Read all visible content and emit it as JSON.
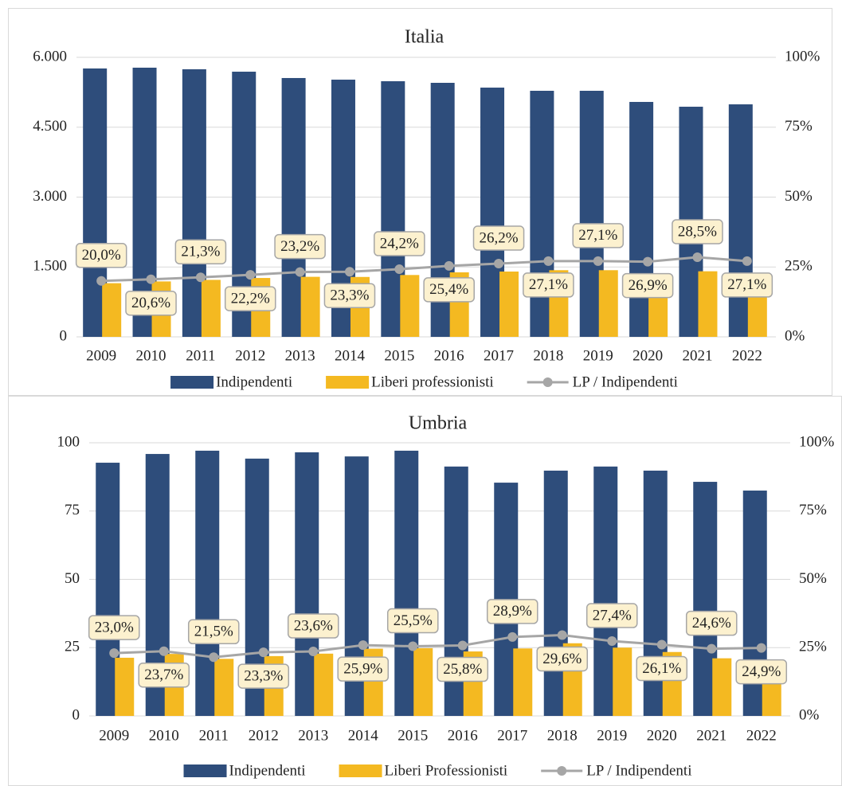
{
  "chart_data": [
    {
      "type": "bar",
      "title": "Italia",
      "categories": [
        "2009",
        "2010",
        "2011",
        "2012",
        "2013",
        "2014",
        "2015",
        "2016",
        "2017",
        "2018",
        "2019",
        "2020",
        "2021",
        "2022"
      ],
      "series": [
        {
          "name": "Indipendenti",
          "color": "#2e4d7b",
          "values": [
            5761,
            5778,
            5744,
            5692,
            5556,
            5521,
            5487,
            5453,
            5350,
            5282,
            5282,
            5043,
            4940,
            4991
          ]
        },
        {
          "name": "Liberi professionisti",
          "color": "#f4b921",
          "values": [
            1152,
            1190,
            1223,
            1264,
            1289,
            1286,
            1328,
            1385,
            1402,
            1431,
            1431,
            1357,
            1408,
            1353
          ]
        },
        {
          "name": "LP / Indipendenti",
          "color": "#a6a6a6",
          "axis": "y2",
          "type": "line",
          "values": [
            20.0,
            20.6,
            21.3,
            22.2,
            23.2,
            23.3,
            24.2,
            25.4,
            26.2,
            27.1,
            27.1,
            26.9,
            28.5,
            27.1
          ],
          "value_labels": [
            "20,0%",
            "20,6%",
            "21,3%",
            "22,2%",
            "23,2%",
            "23,3%",
            "24,2%",
            "25,4%",
            "26,2%",
            "27,1%",
            "27,1%",
            "26,9%",
            "28,5%",
            "27,1%"
          ]
        }
      ],
      "ylim": [
        0,
        6000
      ],
      "yticks": [
        0,
        {
          "value": 1500,
          "label": "1.500"
        },
        {
          "value": 3000,
          "label": "3.000"
        },
        {
          "value": 4500,
          "label": "4.500"
        },
        {
          "value": 6000,
          "label": "6.000"
        }
      ],
      "y2lim": [
        0,
        100
      ],
      "y2ticks": [
        {
          "value": 0,
          "label": "0%"
        },
        {
          "value": 25,
          "label": "25%"
        },
        {
          "value": 50,
          "label": "50%"
        },
        {
          "value": 75,
          "label": "75%"
        },
        {
          "value": 100,
          "label": "100%"
        }
      ],
      "grid": true,
      "legend": "bottom"
    },
    {
      "type": "bar",
      "title": "Umbria",
      "categories": [
        "2009",
        "2010",
        "2011",
        "2012",
        "2013",
        "2014",
        "2015",
        "2016",
        "2017",
        "2018",
        "2019",
        "2020",
        "2021",
        "2022"
      ],
      "series": [
        {
          "name": "Indipendenti",
          "color": "#2e4d7b",
          "values": [
            92.7,
            95.9,
            97.1,
            94.2,
            96.5,
            95.0,
            97.1,
            91.3,
            85.4,
            89.8,
            91.3,
            89.8,
            85.7,
            82.5
          ]
        },
        {
          "name": "Liberi Professionisti",
          "color": "#f4b921",
          "values": [
            21.3,
            22.7,
            20.9,
            21.9,
            22.8,
            24.6,
            24.8,
            23.6,
            24.7,
            26.6,
            25.0,
            23.4,
            21.1,
            20.5
          ]
        },
        {
          "name": "LP / Indipendenti",
          "color": "#a6a6a6",
          "axis": "y2",
          "type": "line",
          "values": [
            23.0,
            23.7,
            21.5,
            23.3,
            23.6,
            25.9,
            25.5,
            25.8,
            28.9,
            29.6,
            27.4,
            26.1,
            24.6,
            24.9
          ],
          "value_labels": [
            "23,0%",
            "23,7%",
            "21,5%",
            "23,3%",
            "23,6%",
            "25,9%",
            "25,5%",
            "25,8%",
            "28,9%",
            "29,6%",
            "27,4%",
            "26,1%",
            "24,6%",
            "24,9%"
          ]
        }
      ],
      "ylim": [
        0,
        100
      ],
      "yticks": [
        0,
        25,
        50,
        75,
        100
      ],
      "y2lim": [
        0,
        100
      ],
      "y2ticks": [
        {
          "value": 0,
          "label": "0%"
        },
        {
          "value": 25,
          "label": "25%"
        },
        {
          "value": 50,
          "label": "50%"
        },
        {
          "value": 75,
          "label": "75%"
        },
        {
          "value": 100,
          "label": "100%"
        }
      ],
      "grid": true,
      "legend": "bottom"
    }
  ]
}
